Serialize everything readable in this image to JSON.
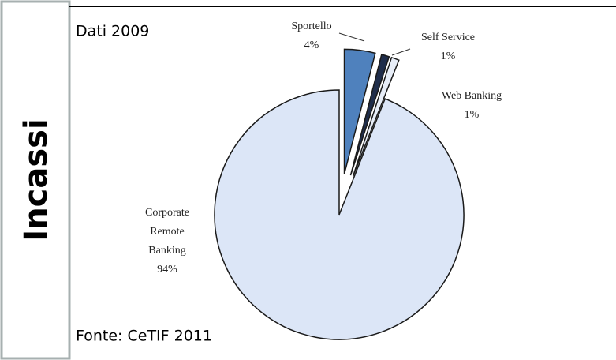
{
  "panel_label": "Incassi",
  "chart_data": {
    "type": "pie",
    "title": "Dati 2009",
    "source": "Fonte: CeTIF 2011",
    "categories": [
      "Sportello",
      "Self Service",
      "Web Banking",
      "Corporate Remote Banking"
    ],
    "values": [
      4,
      1,
      1,
      94
    ],
    "value_labels": [
      "4%",
      "1%",
      "1%",
      "94%"
    ],
    "colors": [
      "#4f81bd",
      "#1f2d4a",
      "#e8eef8",
      "#dce6f7"
    ],
    "exploded": [
      true,
      true,
      true,
      false
    ]
  }
}
